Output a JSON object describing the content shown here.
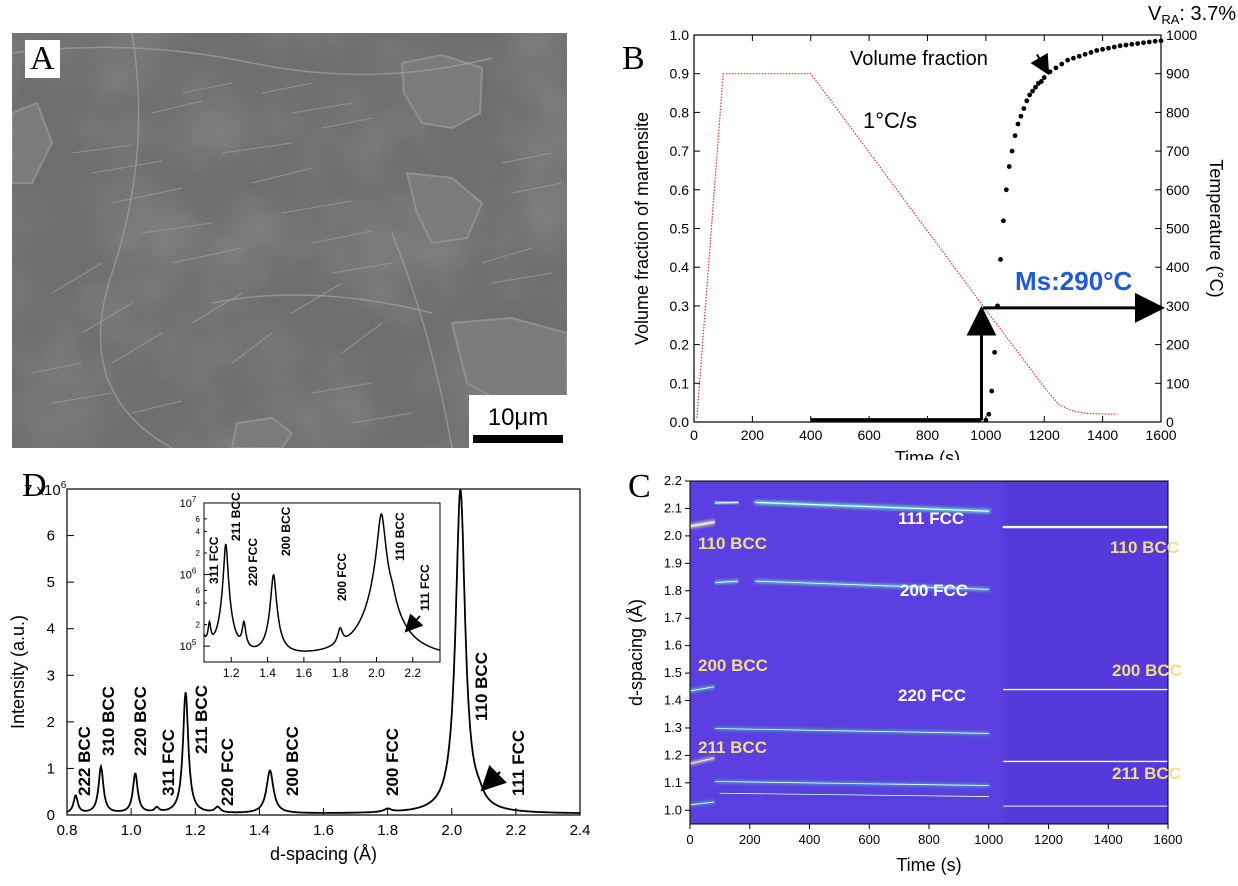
{
  "panel_letters": {
    "a": "A",
    "b": "B",
    "c": "C",
    "d": "D"
  },
  "micrograph": {
    "scale_bar": "10μm"
  },
  "chart_data": [
    {
      "panel": "B",
      "type": "line",
      "xlabel": "Time (s)",
      "ylabel": "Volume fraction of martensite",
      "y2label": "Temperature (°C)",
      "xlim": [
        0,
        1600
      ],
      "ylim": [
        0,
        1.0
      ],
      "y2lim": [
        0,
        1000
      ],
      "x_ticks": [
        0,
        200,
        400,
        600,
        800,
        1000,
        1200,
        1400,
        1600
      ],
      "y_ticks": [
        "0.0",
        "0.1",
        "0.2",
        "0.3",
        "0.4",
        "0.5",
        "0.6",
        "0.7",
        "0.8",
        "0.9",
        "1.0"
      ],
      "y2_ticks": [
        0,
        100,
        200,
        300,
        400,
        500,
        600,
        700,
        800,
        900,
        1000
      ],
      "annotations": {
        "vra_main": "V",
        "vra_sub": "RA",
        "vra_value": ": 3.7%",
        "rate": "1°C/s",
        "ms": "Ms:290°C",
        "vf_label": "Volume fraction"
      },
      "series": [
        {
          "values_role": "temperature",
          "color": "#d9352a",
          "x": [
            10,
            100,
            400,
            1000,
            1200,
            1250,
            1300,
            1350,
            1450
          ],
          "y": [
            10,
            900,
            900,
            290,
            90,
            45,
            28,
            22,
            20
          ]
        },
        {
          "values_role": "volume_fraction",
          "color": "#000000",
          "x": [
            1000,
            1010,
            1020,
            1030,
            1040,
            1050,
            1060,
            1070,
            1080,
            1090,
            1100,
            1110,
            1120,
            1130,
            1140,
            1150,
            1160,
            1170,
            1180,
            1190,
            1200,
            1220,
            1240,
            1260,
            1280,
            1300,
            1320,
            1340,
            1360,
            1380,
            1400,
            1420,
            1440,
            1460,
            1480,
            1500,
            1520,
            1540,
            1560,
            1580,
            1600
          ],
          "y": [
            0.005,
            0.02,
            0.08,
            0.18,
            0.3,
            0.42,
            0.52,
            0.6,
            0.66,
            0.7,
            0.74,
            0.77,
            0.79,
            0.81,
            0.83,
            0.845,
            0.855,
            0.865,
            0.875,
            0.88,
            0.89,
            0.905,
            0.915,
            0.925,
            0.935,
            0.94,
            0.945,
            0.95,
            0.955,
            0.96,
            0.963,
            0.966,
            0.969,
            0.972,
            0.974,
            0.976,
            0.978,
            0.98,
            0.982,
            0.984,
            0.985
          ]
        }
      ]
    },
    {
      "panel": "D",
      "type": "line",
      "xlabel": "d-spacing (Å)",
      "ylabel": "Intensity (a.u.)",
      "xlim": [
        0.8,
        2.4
      ],
      "ylim": [
        0,
        7
      ],
      "x_ticks": [
        "0.8",
        "1.0",
        "1.2",
        "1.4",
        "1.6",
        "1.8",
        "2.0",
        "2.2",
        "2.4"
      ],
      "y_ticks": [
        "0",
        "1",
        "2",
        "3",
        "4",
        "5",
        "6"
      ],
      "y_top_label": "7 x10",
      "y_top_exp": "6",
      "peaks": [
        {
          "d": 0.827,
          "h": 0.38,
          "w": 0.008,
          "label": "222 BCC"
        },
        {
          "d": 0.906,
          "h": 1.0,
          "w": 0.009,
          "label": "310 BCC"
        },
        {
          "d": 1.013,
          "h": 0.85,
          "w": 0.009,
          "label": "220 BCC"
        },
        {
          "d": 1.08,
          "h": 0.1,
          "w": 0.008,
          "label": "311 FCC"
        },
        {
          "d": 1.17,
          "h": 2.6,
          "w": 0.01,
          "label": "211 BCC"
        },
        {
          "d": 1.27,
          "h": 0.12,
          "w": 0.01,
          "label": "220 FCC"
        },
        {
          "d": 1.433,
          "h": 0.92,
          "w": 0.013,
          "label": "200 BCC"
        },
        {
          "d": 1.8,
          "h": 0.07,
          "w": 0.014,
          "label": "200 FCC"
        },
        {
          "d": 2.027,
          "h": 6.95,
          "w": 0.018,
          "label": "110 BCC"
        },
        {
          "d": 2.085,
          "h": 0.15,
          "w": 0.018,
          "label": "111 FCC"
        }
      ],
      "inset": {
        "xlim": [
          1.05,
          2.35
        ],
        "ylim_log": [
          60000,
          10000000
        ],
        "x_ticks": [
          "1.2",
          "1.4",
          "1.6",
          "1.8",
          "2.0",
          "2.2"
        ],
        "y_major": [
          {
            "base": "10",
            "exp": "5"
          },
          {
            "base": "10",
            "exp": "6"
          },
          {
            "base": "10",
            "exp": "7"
          }
        ],
        "y_minor_labels": [
          "2",
          "4",
          "6",
          "2",
          "4",
          "6"
        ],
        "peak_labels": [
          "311 FCC",
          "211 BCC",
          "220 FCC",
          "200 BCC",
          "200 FCC",
          "110 BCC",
          "111 FCC"
        ]
      }
    },
    {
      "panel": "C",
      "type": "heatmap",
      "xlabel": "Time (s)",
      "ylabel": "d-spacing (Å)",
      "xlim": [
        0,
        1600
      ],
      "ylim": [
        0.95,
        2.2
      ],
      "x_ticks": [
        0,
        200,
        400,
        600,
        800,
        1000,
        1200,
        1400,
        1600
      ],
      "y_ticks": [
        "1.0",
        "1.1",
        "1.2",
        "1.3",
        "1.4",
        "1.5",
        "1.6",
        "1.7",
        "1.8",
        "1.9",
        "2.0",
        "2.1",
        "2.2"
      ],
      "background_color": "#5b3fe0",
      "labels_bcc": [
        "110 BCC",
        "110 BCC",
        "200 BCC",
        "200 BCC",
        "211 BCC",
        "211 BCC"
      ],
      "labels_fcc": [
        "111 FCC",
        "200 FCC",
        "220 FCC"
      ],
      "bcc_label_color": "#f1dc8a",
      "fcc_label_color": "#ffffff"
    }
  ]
}
